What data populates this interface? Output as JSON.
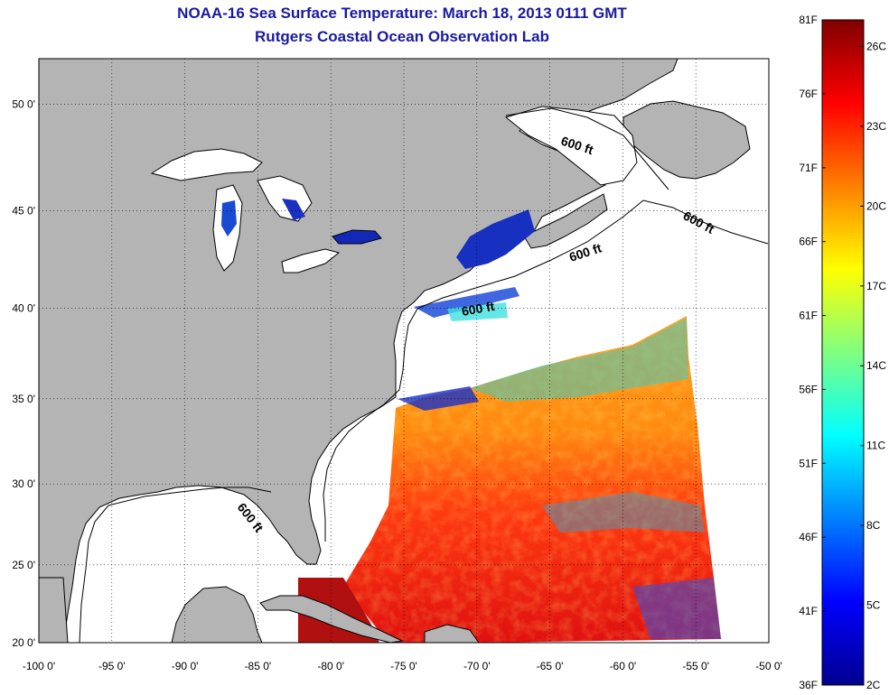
{
  "header": {
    "title": "NOAA-16 Sea Surface Temperature:  March 18, 2013 0111 GMT",
    "subtitle": "Rutgers Coastal Ocean Observation Lab"
  },
  "map": {
    "lon_range": [
      -100,
      -50
    ],
    "lat_range": [
      20,
      52
    ],
    "lon_ticks": [
      "-100 0'",
      "-95 0'",
      "-90 0'",
      "-85 0'",
      "-80 0'",
      "-75 0'",
      "-70 0'",
      "-65 0'",
      "-60 0'",
      "-55 0'",
      "-50 0'"
    ],
    "lat_ticks": [
      "20 0'",
      "25 0'",
      "30 0'",
      "35 0'",
      "40 0'",
      "45 0'",
      "50 0'"
    ],
    "lat_tick_values": [
      20,
      25,
      30,
      35,
      40,
      45,
      50
    ],
    "grid": "dotted",
    "land_color": "#b4b4b4",
    "ocean_nodata_color": "#ffffff",
    "contour_label": "600 ft"
  },
  "colorbar": {
    "fahrenheit_labels": [
      "81F",
      "76F",
      "71F",
      "66F",
      "61F",
      "56F",
      "51F",
      "46F",
      "41F",
      "36F"
    ],
    "celsius_labels": [
      "26C",
      "23C",
      "20C",
      "17C",
      "14C",
      "11C",
      "8C",
      "5C",
      "2C"
    ],
    "range_f": [
      36,
      81
    ],
    "range_c": [
      2,
      27
    ]
  }
}
